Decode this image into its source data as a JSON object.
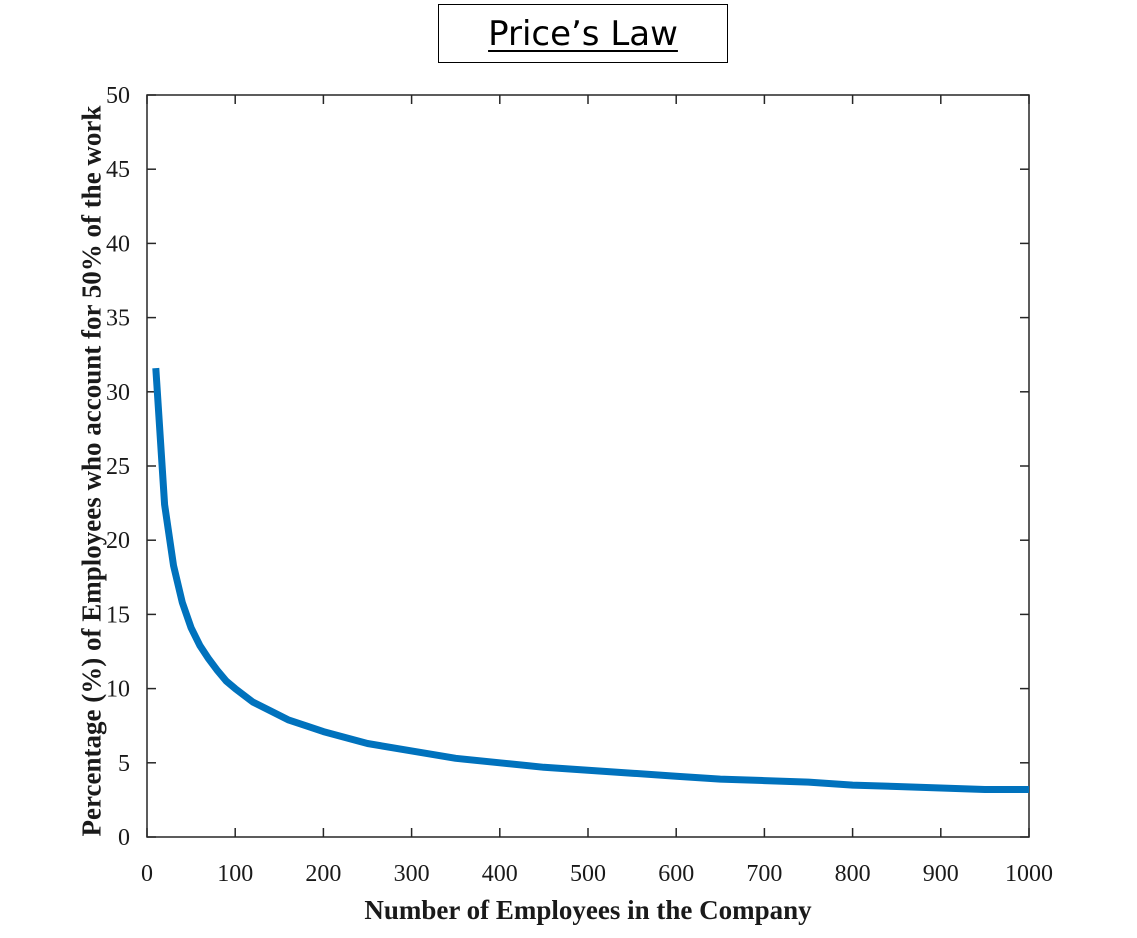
{
  "chart_data": {
    "type": "line",
    "title": "Price’s Law",
    "xlabel": "Number of Employees in the Company",
    "ylabel": "Percentage (%) of Employees who account for 50% of the work",
    "xlim": [
      0,
      1000
    ],
    "ylim": [
      0,
      50
    ],
    "xticks": [
      0,
      100,
      200,
      300,
      400,
      500,
      600,
      700,
      800,
      900,
      1000
    ],
    "yticks": [
      0,
      5,
      10,
      15,
      20,
      25,
      30,
      35,
      40,
      45,
      50
    ],
    "grid": false,
    "line_color": "#0072BD",
    "series": [
      {
        "x": [
          10,
          20,
          30,
          40,
          50,
          60,
          70,
          80,
          90,
          100,
          120,
          140,
          160,
          180,
          200,
          250,
          300,
          350,
          400,
          450,
          500,
          550,
          600,
          650,
          700,
          750,
          800,
          850,
          900,
          950,
          1000
        ],
        "values": [
          31.6,
          22.4,
          18.3,
          15.8,
          14.1,
          12.9,
          12.0,
          11.2,
          10.5,
          10.0,
          9.1,
          8.5,
          7.9,
          7.5,
          7.1,
          6.3,
          5.8,
          5.3,
          5.0,
          4.7,
          4.5,
          4.3,
          4.1,
          3.9,
          3.8,
          3.7,
          3.5,
          3.4,
          3.3,
          3.2,
          3.2
        ]
      }
    ]
  }
}
